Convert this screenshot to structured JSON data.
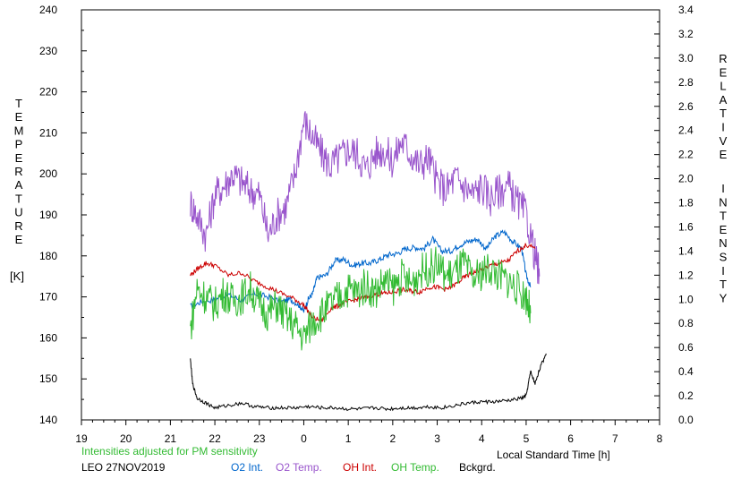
{
  "chart_data": {
    "type": "line",
    "title": "",
    "xlabel": "Local Standard Time [h]",
    "ylabel_left": "TEMPERATURE [K]",
    "ylabel_left_letters": [
      "T",
      "E",
      "M",
      "P",
      "E",
      "R",
      "A",
      "T",
      "U",
      "R",
      "E"
    ],
    "ylabel_left_unit": "[K]",
    "ylabel_right": "RELATIVE INTENSITY",
    "ylabel_right_letters_1": [
      "R",
      "E",
      "L",
      "A",
      "T",
      "I",
      "V",
      "E"
    ],
    "ylabel_right_letters_2": [
      "I",
      "N",
      "T",
      "E",
      "N",
      "S",
      "I",
      "T",
      "Y"
    ],
    "x_ticks": [
      19,
      20,
      21,
      22,
      23,
      0,
      1,
      2,
      3,
      4,
      5,
      6,
      7,
      8
    ],
    "x_tick_labels": [
      "19",
      "20",
      "21",
      "22",
      "23",
      "0",
      "1",
      "2",
      "3",
      "4",
      "5",
      "6",
      "7",
      "8"
    ],
    "xlim": [
      19,
      32
    ],
    "ylim_left": [
      140,
      240
    ],
    "y_ticks_left": [
      "140",
      "150",
      "160",
      "170",
      "180",
      "190",
      "200",
      "210",
      "220",
      "230",
      "240"
    ],
    "ylim_right": [
      0.0,
      3.4
    ],
    "y_ticks_right": [
      "0.0",
      "0.2",
      "0.4",
      "0.6",
      "0.8",
      "1.0",
      "1.2",
      "1.4",
      "1.6",
      "1.8",
      "2.0",
      "2.2",
      "2.4",
      "2.6",
      "2.8",
      "3.0",
      "3.2",
      "3.4"
    ],
    "note": "Intensities adjusted for PM sensitivity",
    "station": "LEO 27NOV2019",
    "series": [
      {
        "name": "O2 Int.",
        "axis": "right",
        "color": "#0066cc",
        "x": [
          21.45,
          21.7,
          22.0,
          22.3,
          22.6,
          22.9,
          23.2,
          23.5,
          23.7,
          23.9,
          24.0,
          24.1,
          24.2,
          24.3,
          24.5,
          24.7,
          24.9,
          25.1,
          25.3,
          25.5,
          25.7,
          25.9,
          26.1,
          26.3,
          26.5,
          26.7,
          26.9,
          27.1,
          27.3,
          27.5,
          27.7,
          27.9,
          28.1,
          28.3,
          28.5,
          28.7,
          28.9,
          29.0,
          29.1
        ],
        "y": [
          0.94,
          0.98,
          1.0,
          1.04,
          0.99,
          1.05,
          1.02,
          0.98,
          1.0,
          0.95,
          0.9,
          1.0,
          1.05,
          1.18,
          1.2,
          1.32,
          1.33,
          1.28,
          1.3,
          1.3,
          1.33,
          1.37,
          1.38,
          1.42,
          1.43,
          1.42,
          1.5,
          1.4,
          1.4,
          1.45,
          1.48,
          1.5,
          1.42,
          1.52,
          1.56,
          1.48,
          1.42,
          1.2,
          1.1
        ]
      },
      {
        "name": "O2 Temp.",
        "axis": "left",
        "color": "#9955cc",
        "x": [
          21.45,
          21.6,
          21.8,
          22.0,
          22.2,
          22.4,
          22.6,
          22.8,
          23.0,
          23.2,
          23.4,
          23.6,
          23.8,
          24.0,
          24.2,
          24.4,
          24.6,
          24.8,
          25.0,
          25.2,
          25.4,
          25.6,
          25.8,
          26.0,
          26.2,
          26.4,
          26.6,
          26.8,
          27.0,
          27.2,
          27.4,
          27.6,
          27.8,
          28.0,
          28.2,
          28.4,
          28.6,
          28.8,
          29.0,
          29.2,
          29.3
        ],
        "y": [
          193,
          190,
          185,
          195,
          197,
          200,
          198,
          196,
          195,
          185,
          190,
          192,
          200,
          213,
          209,
          205,
          202,
          204,
          206,
          205,
          201,
          205,
          206,
          203,
          208,
          205,
          202,
          204,
          198,
          196,
          199,
          197,
          195,
          197,
          194,
          196,
          197,
          193,
          190,
          180,
          175
        ]
      },
      {
        "name": "OH Int.",
        "axis": "right",
        "color": "#cc0000",
        "x": [
          21.45,
          21.6,
          21.8,
          22.0,
          22.3,
          22.6,
          22.9,
          23.2,
          23.5,
          23.8,
          24.0,
          24.2,
          24.4,
          24.6,
          24.8,
          25.0,
          25.2,
          25.4,
          25.6,
          25.8,
          26.0,
          26.2,
          26.4,
          26.6,
          26.8,
          27.0,
          27.2,
          27.4,
          27.6,
          27.8,
          28.0,
          28.2,
          28.4,
          28.6,
          28.8,
          29.0,
          29.2
        ],
        "y": [
          1.2,
          1.25,
          1.3,
          1.28,
          1.2,
          1.22,
          1.15,
          1.1,
          1.05,
          1.0,
          0.95,
          0.85,
          0.82,
          0.92,
          0.95,
          0.98,
          1.0,
          1.02,
          1.04,
          1.05,
          1.06,
          1.08,
          1.07,
          1.06,
          1.1,
          1.1,
          1.08,
          1.12,
          1.18,
          1.22,
          1.25,
          1.28,
          1.3,
          1.32,
          1.4,
          1.45,
          1.42
        ]
      },
      {
        "name": "OH Temp.",
        "axis": "left",
        "color": "#33bb33",
        "x": [
          21.45,
          21.6,
          21.8,
          22.0,
          22.2,
          22.4,
          22.6,
          22.8,
          23.0,
          23.2,
          23.4,
          23.6,
          23.8,
          24.0,
          24.2,
          24.4,
          24.6,
          24.8,
          25.0,
          25.2,
          25.4,
          25.6,
          25.8,
          26.0,
          26.2,
          26.4,
          26.6,
          26.8,
          27.0,
          27.2,
          27.4,
          27.6,
          27.8,
          28.0,
          28.2,
          28.4,
          28.6,
          28.8,
          29.0,
          29.1
        ],
        "y": [
          162,
          172,
          170,
          168,
          171,
          169,
          170,
          172,
          168,
          166,
          168,
          165,
          163,
          160,
          164,
          166,
          168,
          170,
          172,
          171,
          173,
          171,
          174,
          172,
          175,
          173,
          176,
          177,
          178,
          175,
          176,
          178,
          174,
          176,
          177,
          175,
          174,
          172,
          170,
          166
        ]
      },
      {
        "name": "Bckgrd.",
        "axis": "right",
        "color": "#000000",
        "x": [
          21.45,
          21.5,
          21.6,
          21.8,
          22.0,
          22.3,
          22.6,
          22.9,
          23.2,
          23.5,
          23.8,
          24.1,
          24.4,
          24.7,
          25.0,
          25.3,
          25.6,
          25.9,
          26.2,
          26.5,
          26.8,
          27.1,
          27.4,
          27.7,
          28.0,
          28.3,
          28.6,
          28.9,
          29.0,
          29.1,
          29.2,
          29.3,
          29.45
        ],
        "y": [
          0.5,
          0.3,
          0.18,
          0.14,
          0.1,
          0.12,
          0.14,
          0.11,
          0.1,
          0.1,
          0.1,
          0.11,
          0.1,
          0.1,
          0.09,
          0.09,
          0.1,
          0.09,
          0.1,
          0.1,
          0.11,
          0.1,
          0.12,
          0.14,
          0.15,
          0.15,
          0.16,
          0.18,
          0.2,
          0.4,
          0.3,
          0.42,
          0.55
        ]
      }
    ]
  }
}
